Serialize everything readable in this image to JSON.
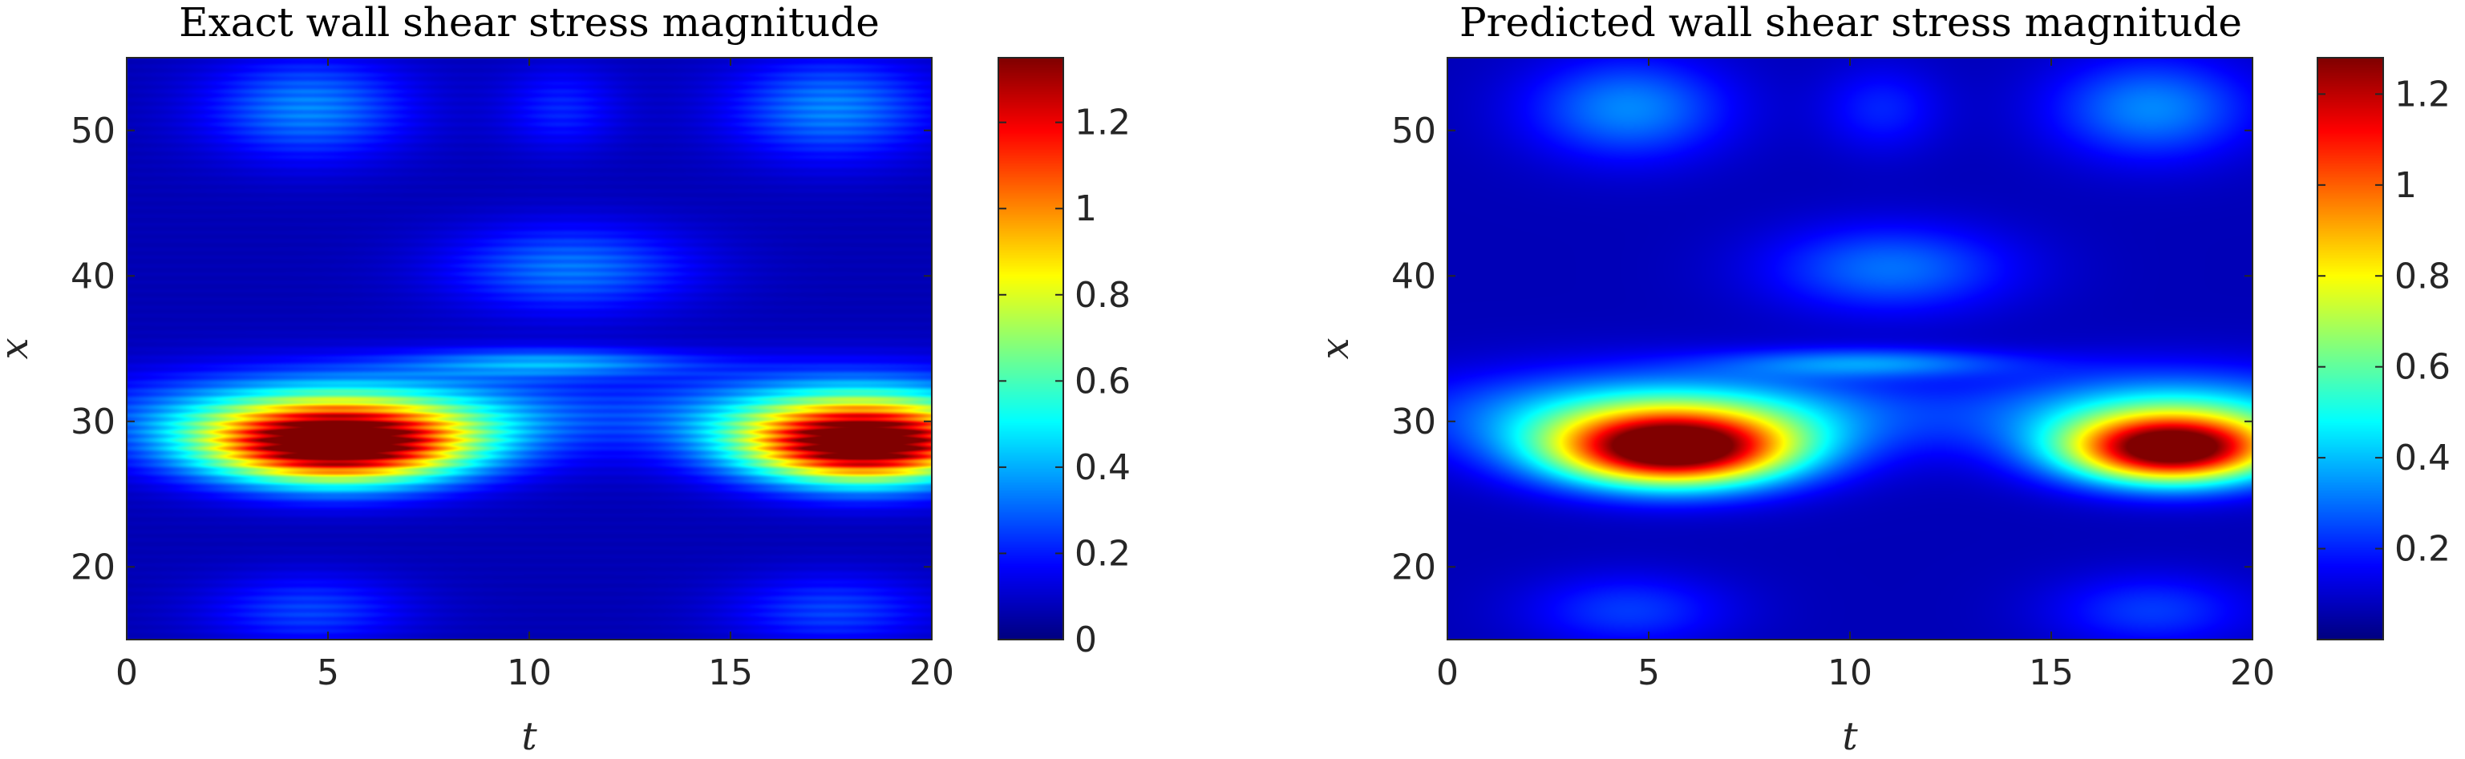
{
  "chart_data": [
    {
      "type": "heatmap",
      "title": "Exact wall shear stress magnitude",
      "xlabel": "t",
      "ylabel": "x",
      "xlim": [
        0,
        20
      ],
      "ylim": [
        15,
        55
      ],
      "x_ticks": [
        "0",
        "5",
        "10",
        "15",
        "20"
      ],
      "y_ticks": [
        "20",
        "30",
        "40",
        "50"
      ],
      "colormap": "jet",
      "color_range": [
        0,
        1.35
      ],
      "colorbar_ticks": [
        "0",
        "0.2",
        "0.4",
        "0.6",
        "0.8",
        "1",
        "1.2"
      ],
      "banded": true,
      "features": [
        {
          "t": 5.2,
          "x": 28.3,
          "peak": 1.33,
          "width_t": 3.2,
          "width_x": 2.6
        },
        {
          "t": 18.3,
          "x": 28.3,
          "peak": 1.28,
          "width_t": 2.9,
          "width_x": 2.6
        },
        {
          "t": 5.5,
          "x": 30.5,
          "peak": 0.45,
          "width_t": 5.5,
          "width_x": 3.0
        },
        {
          "t": 18.0,
          "x": 30.5,
          "peak": 0.42,
          "width_t": 4.5,
          "width_x": 3.0
        },
        {
          "t": 10.5,
          "x": 34.0,
          "peak": 0.28,
          "width_t": 3.5,
          "width_x": 1.0
        },
        {
          "t": 4.5,
          "x": 51.5,
          "peak": 0.27,
          "width_t": 2.5,
          "width_x": 3.5
        },
        {
          "t": 17.5,
          "x": 51.5,
          "peak": 0.27,
          "width_t": 2.5,
          "width_x": 3.5
        },
        {
          "t": 11.0,
          "x": 40.5,
          "peak": 0.25,
          "width_t": 3.0,
          "width_x": 3.0
        },
        {
          "t": 10.8,
          "x": 51.5,
          "peak": 0.14,
          "width_t": 1.5,
          "width_x": 3.0
        },
        {
          "t": 4.5,
          "x": 17.0,
          "peak": 0.18,
          "width_t": 2.5,
          "width_x": 2.5
        },
        {
          "t": 17.5,
          "x": 17.0,
          "peak": 0.18,
          "width_t": 2.5,
          "width_x": 2.5
        }
      ]
    },
    {
      "type": "heatmap",
      "title": "Predicted wall shear stress magnitude",
      "xlabel": "t",
      "ylabel": "x",
      "xlim": [
        0,
        20
      ],
      "ylim": [
        15,
        55
      ],
      "x_ticks": [
        "0",
        "5",
        "10",
        "15",
        "20"
      ],
      "y_ticks": [
        "20",
        "30",
        "40",
        "50"
      ],
      "colormap": "jet",
      "color_range": [
        0,
        1.28
      ],
      "colorbar_ticks": [
        "0.2",
        "0.4",
        "0.6",
        "0.8",
        "1",
        "1.2"
      ],
      "banded": false,
      "features": [
        {
          "t": 5.6,
          "x": 28.0,
          "peak": 1.27,
          "width_t": 3.0,
          "width_x": 2.5
        },
        {
          "t": 18.0,
          "x": 28.0,
          "peak": 1.22,
          "width_t": 2.6,
          "width_x": 2.3
        },
        {
          "t": 5.5,
          "x": 30.5,
          "peak": 0.42,
          "width_t": 5.5,
          "width_x": 3.0
        },
        {
          "t": 18.0,
          "x": 30.5,
          "peak": 0.38,
          "width_t": 4.5,
          "width_x": 3.0
        },
        {
          "t": 10.5,
          "x": 34.0,
          "peak": 0.24,
          "width_t": 3.5,
          "width_x": 1.0
        },
        {
          "t": 4.5,
          "x": 51.5,
          "peak": 0.26,
          "width_t": 2.5,
          "width_x": 3.5
        },
        {
          "t": 17.5,
          "x": 51.5,
          "peak": 0.26,
          "width_t": 2.5,
          "width_x": 3.5
        },
        {
          "t": 11.0,
          "x": 40.5,
          "peak": 0.23,
          "width_t": 3.0,
          "width_x": 3.0
        },
        {
          "t": 10.8,
          "x": 51.5,
          "peak": 0.13,
          "width_t": 1.5,
          "width_x": 3.0
        },
        {
          "t": 4.5,
          "x": 17.0,
          "peak": 0.16,
          "width_t": 2.5,
          "width_x": 2.5
        },
        {
          "t": 17.5,
          "x": 17.0,
          "peak": 0.16,
          "width_t": 2.5,
          "width_x": 2.5
        }
      ]
    }
  ]
}
